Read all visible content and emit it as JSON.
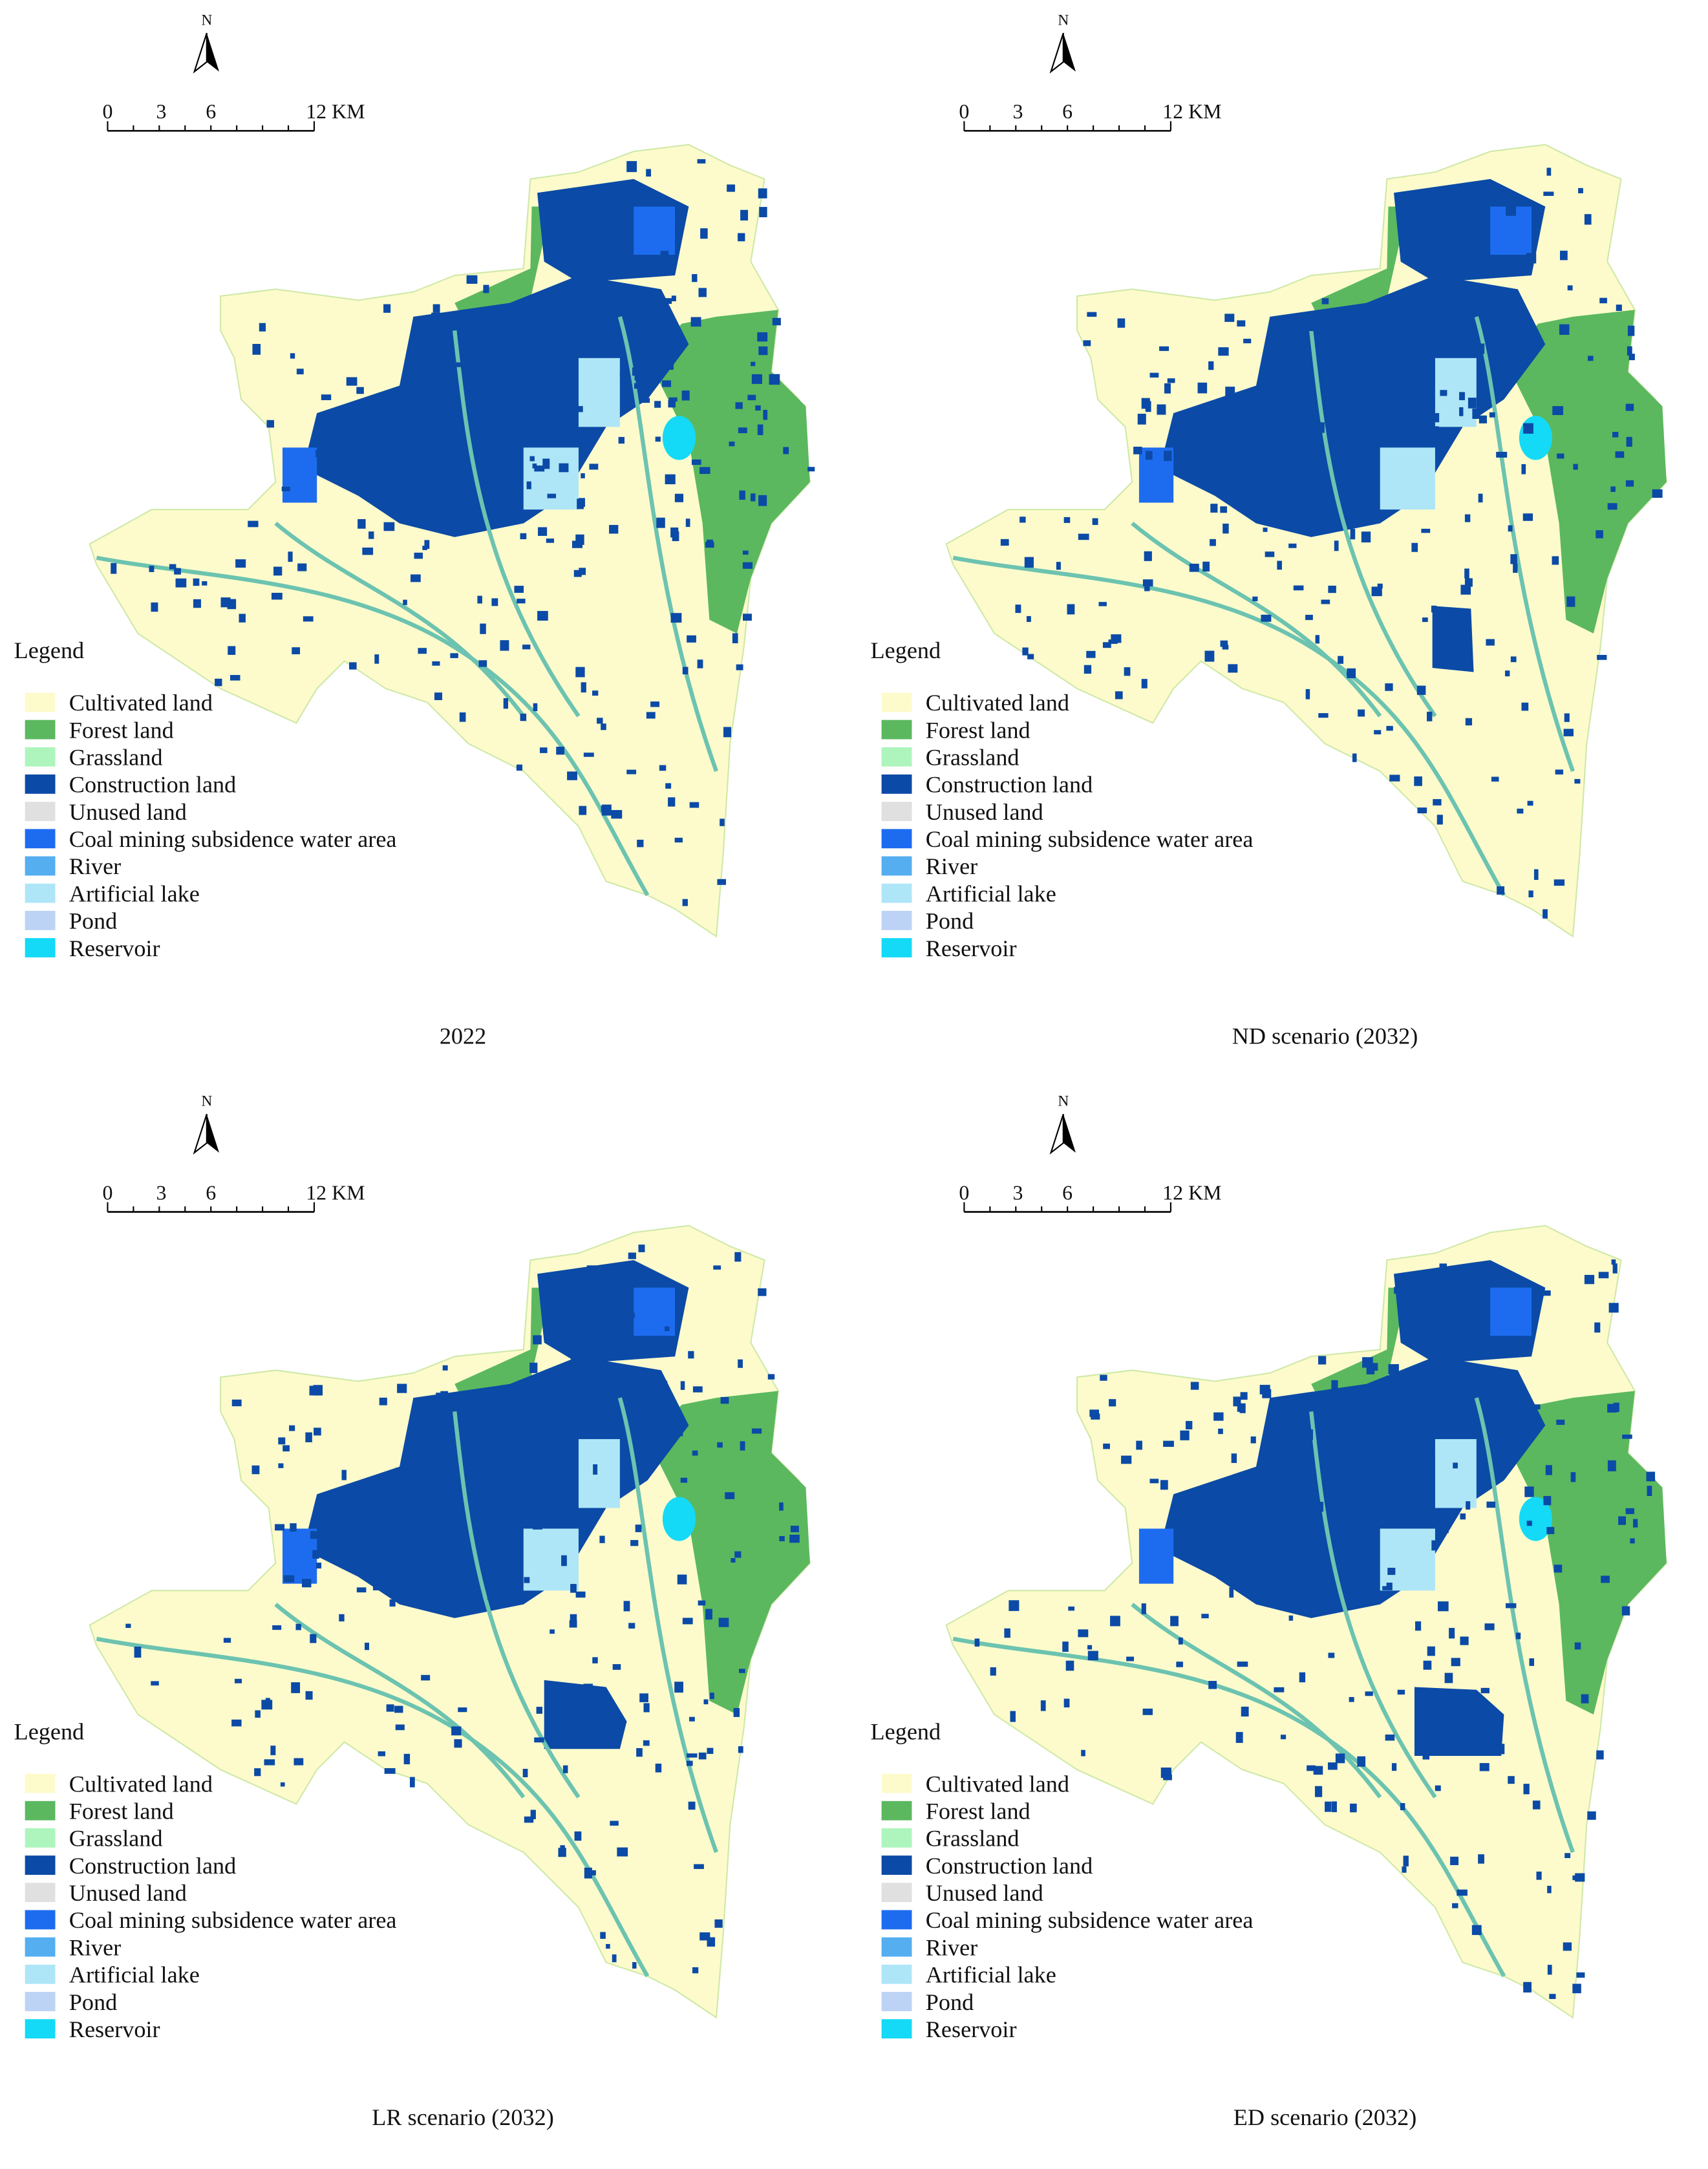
{
  "panels": [
    {
      "caption": "2022",
      "north": "N",
      "scale_labels": [
        "0",
        "3",
        "6",
        "12 KM"
      ],
      "legend": {
        "title": "Legend",
        "items": [
          {
            "label": "Cultivated land",
            "color": "#fdfbcc"
          },
          {
            "label": "Forest land",
            "color": "#5bb85f"
          },
          {
            "label": "Grassland",
            "color": "#aef5bd"
          },
          {
            "label": "Construction land",
            "color": "#0b4aa6"
          },
          {
            "label": "Unused land",
            "color": "#e0e0e0"
          },
          {
            "label": "Coal mining subsidence water area",
            "color": "#1d6cf0"
          },
          {
            "label": "River",
            "color": "#54aef0"
          },
          {
            "label": "Artificial lake",
            "color": "#aee6f7"
          },
          {
            "label": "Pond",
            "color": "#bcd3f5"
          },
          {
            "label": "Reservoir",
            "color": "#14daf7"
          }
        ]
      }
    },
    {
      "caption": "ND scenario (2032)",
      "north": "N",
      "scale_labels": [
        "0",
        "3",
        "6",
        "12 KM"
      ],
      "legend": {
        "title": "Legend",
        "items": [
          {
            "label": "Cultivated land",
            "color": "#fdfbcc"
          },
          {
            "label": "Forest land",
            "color": "#5bb85f"
          },
          {
            "label": "Grassland",
            "color": "#aef5bd"
          },
          {
            "label": "Construction land",
            "color": "#0b4aa6"
          },
          {
            "label": "Unused land",
            "color": "#e0e0e0"
          },
          {
            "label": "Coal mining subsidence water area",
            "color": "#1d6cf0"
          },
          {
            "label": "River",
            "color": "#54aef0"
          },
          {
            "label": "Artificial lake",
            "color": "#aee6f7"
          },
          {
            "label": "Pond",
            "color": "#bcd3f5"
          },
          {
            "label": "Reservoir",
            "color": "#14daf7"
          }
        ]
      }
    },
    {
      "caption": "LR scenario (2032)",
      "north": "N",
      "scale_labels": [
        "0",
        "3",
        "6",
        "12 KM"
      ],
      "legend": {
        "title": "Legend",
        "items": [
          {
            "label": "Cultivated land",
            "color": "#fdfbcc"
          },
          {
            "label": "Forest land",
            "color": "#5bb85f"
          },
          {
            "label": "Grassland",
            "color": "#aef5bd"
          },
          {
            "label": "Construction land",
            "color": "#0b4aa6"
          },
          {
            "label": "Unused land",
            "color": "#e0e0e0"
          },
          {
            "label": "Coal mining subsidence water area",
            "color": "#1d6cf0"
          },
          {
            "label": "River",
            "color": "#54aef0"
          },
          {
            "label": "Artificial lake",
            "color": "#aee6f7"
          },
          {
            "label": "Pond",
            "color": "#bcd3f5"
          },
          {
            "label": "Reservoir",
            "color": "#14daf7"
          }
        ]
      }
    },
    {
      "caption": "ED scenario (2032)",
      "north": "N",
      "scale_labels": [
        "0",
        "3",
        "6",
        "12 KM"
      ],
      "legend": {
        "title": "Legend",
        "items": [
          {
            "label": "Cultivated land",
            "color": "#fdfbcc"
          },
          {
            "label": "Forest land",
            "color": "#5bb85f"
          },
          {
            "label": "Grassland",
            "color": "#aef5bd"
          },
          {
            "label": "Construction land",
            "color": "#0b4aa6"
          },
          {
            "label": "Unused land",
            "color": "#e0e0e0"
          },
          {
            "label": "Coal mining subsidence water area",
            "color": "#1d6cf0"
          },
          {
            "label": "River",
            "color": "#54aef0"
          },
          {
            "label": "Artificial lake",
            "color": "#aee6f7"
          },
          {
            "label": "Pond",
            "color": "#bcd3f5"
          },
          {
            "label": "Reservoir",
            "color": "#14daf7"
          }
        ]
      }
    }
  ]
}
